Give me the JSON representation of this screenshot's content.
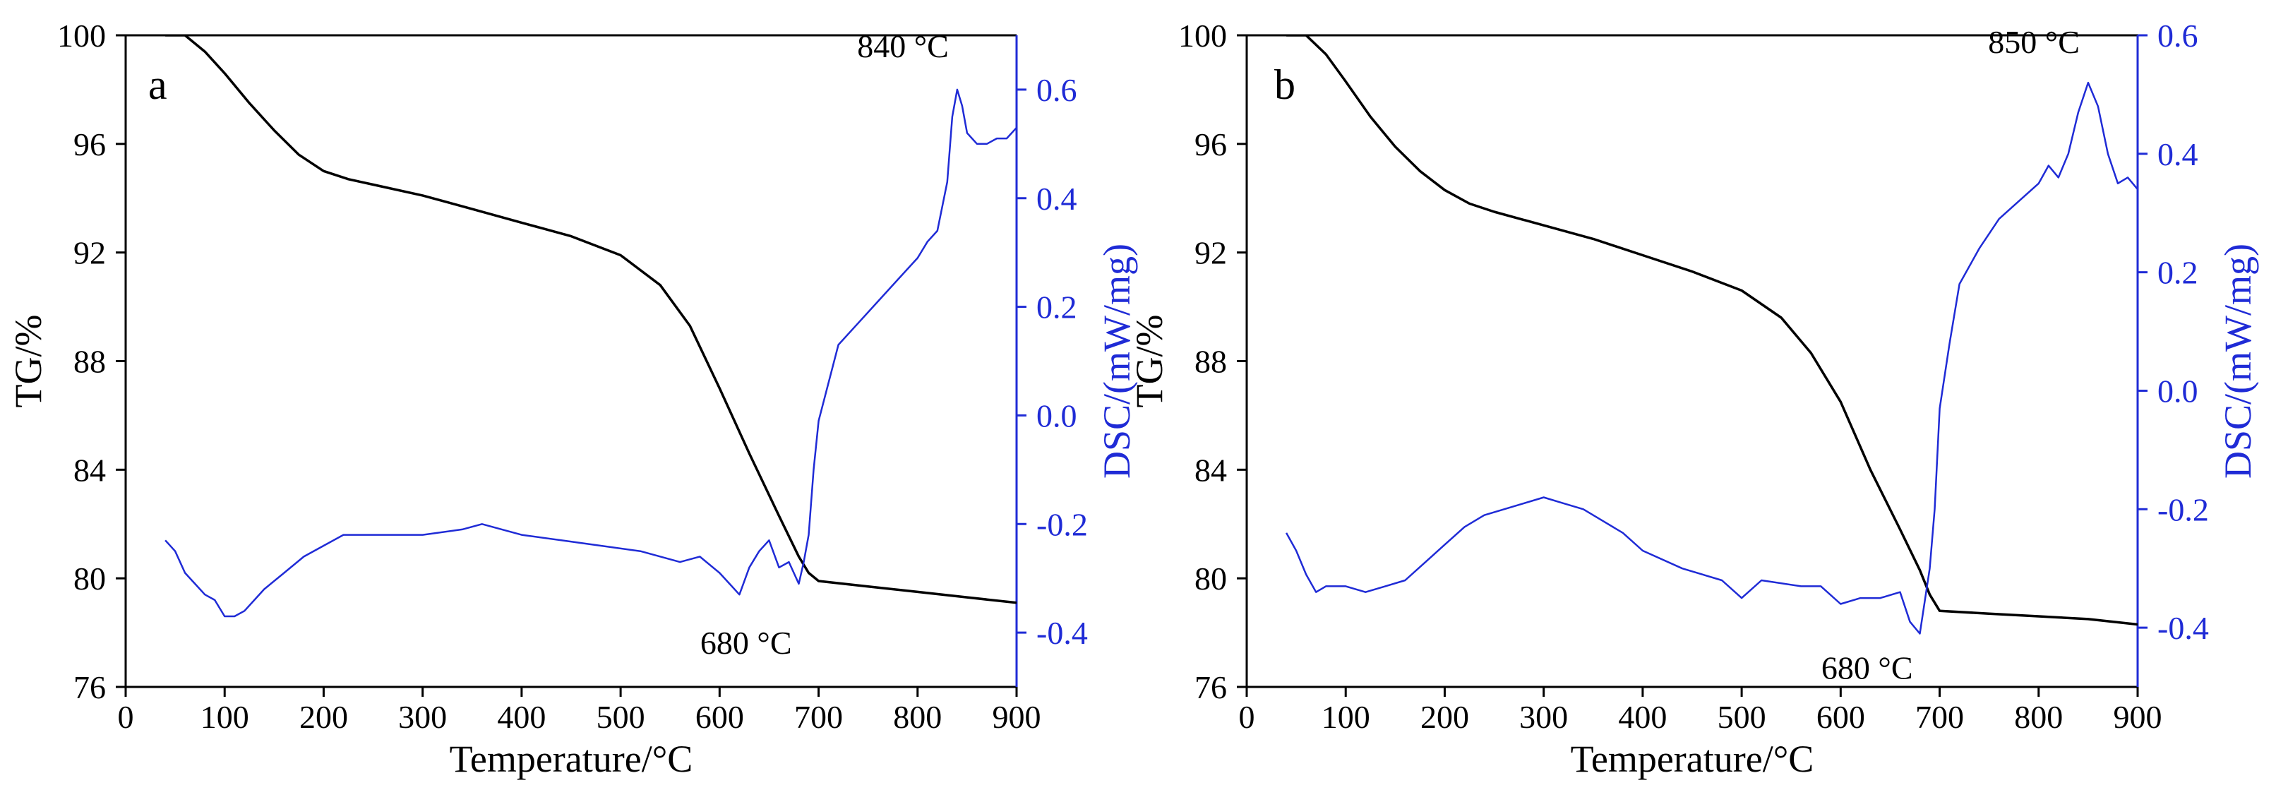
{
  "figure": {
    "panels_count": 2
  },
  "colors": {
    "tg": "#000000",
    "dsc": "#1f2bd6",
    "axis_left": "#000000",
    "axis_right": "#1f2bd6"
  },
  "chart_data": [
    {
      "type": "line",
      "panel_label": "a",
      "xlabel": "Temperature/°C",
      "ylabel_left": "TG/%",
      "ylabel_right": "DSC/(mW/mg)",
      "xlim": [
        0,
        900
      ],
      "ylim_left": [
        76,
        100
      ],
      "ylim_right": [
        -0.5,
        0.7
      ],
      "x_ticks": [
        "0",
        "100",
        "200",
        "300",
        "400",
        "500",
        "600",
        "700",
        "800",
        "900"
      ],
      "y_left_ticks": [
        "76",
        "80",
        "84",
        "88",
        "92",
        "96",
        "100"
      ],
      "y_right_ticks": [
        "-0.4",
        "-0.2",
        "0.0",
        "0.2",
        "0.4",
        "0.6"
      ],
      "annotations": [
        {
          "text": "840 °C",
          "x": 840,
          "y_right": 0.66
        },
        {
          "text": "680 °C",
          "x": 680,
          "y_right": -0.41
        }
      ],
      "series": [
        {
          "name": "TG",
          "axis": "left",
          "x": [
            40,
            60,
            80,
            100,
            125,
            150,
            175,
            200,
            225,
            250,
            300,
            350,
            400,
            450,
            500,
            540,
            570,
            600,
            630,
            660,
            680,
            690,
            700,
            750,
            800,
            850,
            900
          ],
          "y": [
            100,
            100,
            99.4,
            98.6,
            97.5,
            96.5,
            95.6,
            95.0,
            94.7,
            94.5,
            94.1,
            93.6,
            93.1,
            92.6,
            91.9,
            90.8,
            89.3,
            87.0,
            84.6,
            82.3,
            80.8,
            80.2,
            79.9,
            79.7,
            79.5,
            79.3,
            79.1
          ]
        },
        {
          "name": "DSC",
          "axis": "right",
          "x": [
            40,
            50,
            60,
            70,
            80,
            90,
            100,
            110,
            120,
            140,
            160,
            180,
            200,
            220,
            240,
            260,
            300,
            340,
            360,
            380,
            400,
            440,
            480,
            520,
            560,
            580,
            600,
            610,
            620,
            630,
            640,
            650,
            660,
            670,
            680,
            685,
            690,
            695,
            700,
            720,
            740,
            760,
            780,
            800,
            810,
            820,
            830,
            835,
            840,
            845,
            850,
            860,
            870,
            880,
            890,
            900
          ],
          "y": [
            -0.23,
            -0.25,
            -0.29,
            -0.31,
            -0.33,
            -0.34,
            -0.37,
            -0.37,
            -0.36,
            -0.32,
            -0.29,
            -0.26,
            -0.24,
            -0.22,
            -0.22,
            -0.22,
            -0.22,
            -0.21,
            -0.2,
            -0.21,
            -0.22,
            -0.23,
            -0.24,
            -0.25,
            -0.27,
            -0.26,
            -0.29,
            -0.31,
            -0.33,
            -0.28,
            -0.25,
            -0.23,
            -0.28,
            -0.27,
            -0.31,
            -0.27,
            -0.22,
            -0.1,
            -0.01,
            0.13,
            0.17,
            0.21,
            0.25,
            0.29,
            0.32,
            0.34,
            0.43,
            0.55,
            0.6,
            0.57,
            0.52,
            0.5,
            0.5,
            0.51,
            0.51,
            0.53
          ]
        }
      ]
    },
    {
      "type": "line",
      "panel_label": "b",
      "xlabel": "Temperature/°C",
      "ylabel_left": "TG/%",
      "ylabel_right": "DSC/(mW/mg)",
      "xlim": [
        0,
        900
      ],
      "ylim_left": [
        76,
        100
      ],
      "ylim_right": [
        -0.5,
        0.6
      ],
      "x_ticks": [
        "0",
        "100",
        "200",
        "300",
        "400",
        "500",
        "600",
        "700",
        "800",
        "900"
      ],
      "y_left_ticks": [
        "76",
        "80",
        "84",
        "88",
        "92",
        "96",
        "100"
      ],
      "y_right_ticks": [
        "-0.4",
        "-0.2",
        "0.0",
        "0.2",
        "0.4",
        "0.6"
      ],
      "annotations": [
        {
          "text": "850 °C",
          "x": 850,
          "y_right": 0.57
        },
        {
          "text": "680 °C",
          "x": 680,
          "y_right": -0.46
        }
      ],
      "series": [
        {
          "name": "TG",
          "axis": "left",
          "x": [
            40,
            60,
            80,
            100,
            125,
            150,
            175,
            200,
            225,
            250,
            300,
            350,
            400,
            450,
            500,
            540,
            570,
            600,
            630,
            660,
            680,
            690,
            700,
            750,
            800,
            850,
            900
          ],
          "y": [
            100,
            100,
            99.3,
            98.3,
            97.0,
            95.9,
            95.0,
            94.3,
            93.8,
            93.5,
            93.0,
            92.5,
            91.9,
            91.3,
            90.6,
            89.6,
            88.3,
            86.5,
            84.0,
            81.8,
            80.3,
            79.4,
            78.8,
            78.7,
            78.6,
            78.5,
            78.3
          ]
        },
        {
          "name": "DSC",
          "axis": "right",
          "x": [
            40,
            50,
            60,
            70,
            80,
            100,
            120,
            140,
            160,
            180,
            200,
            220,
            240,
            260,
            280,
            300,
            320,
            340,
            360,
            380,
            400,
            440,
            480,
            500,
            520,
            560,
            580,
            600,
            620,
            640,
            660,
            670,
            680,
            690,
            695,
            700,
            710,
            720,
            740,
            760,
            780,
            800,
            810,
            820,
            830,
            840,
            850,
            860,
            870,
            880,
            890,
            900
          ],
          "y": [
            -0.24,
            -0.27,
            -0.31,
            -0.34,
            -0.33,
            -0.33,
            -0.34,
            -0.33,
            -0.32,
            -0.29,
            -0.26,
            -0.23,
            -0.21,
            -0.2,
            -0.19,
            -0.18,
            -0.19,
            -0.2,
            -0.22,
            -0.24,
            -0.27,
            -0.3,
            -0.32,
            -0.35,
            -0.32,
            -0.33,
            -0.33,
            -0.36,
            -0.35,
            -0.35,
            -0.34,
            -0.39,
            -0.41,
            -0.3,
            -0.2,
            -0.03,
            0.08,
            0.18,
            0.24,
            0.29,
            0.32,
            0.35,
            0.38,
            0.36,
            0.4,
            0.47,
            0.52,
            0.48,
            0.4,
            0.35,
            0.36,
            0.34
          ]
        }
      ]
    }
  ]
}
